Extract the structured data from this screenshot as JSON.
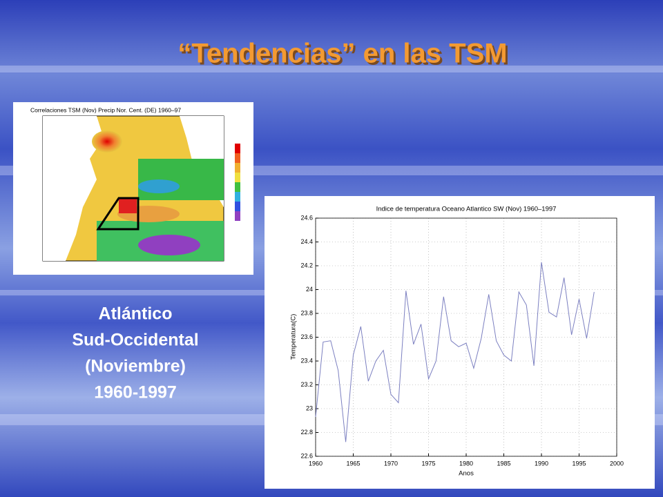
{
  "slide": {
    "title": "“Tendencias” en las TSM",
    "caption": [
      "Atlántico",
      "Sud-Occidental",
      "(Noviembre)",
      "1960-1997"
    ]
  },
  "map": {
    "title": "Correlaciones TSM (Nov) Precip Nor. Cent. (DE) 1960–97"
  },
  "chart_data": {
    "type": "line",
    "title": "Indice de temperatura Oceano Atlantico SW (Nov) 1960–1997",
    "xlabel": "Anos",
    "ylabel": "Temperatura(C)",
    "x": [
      1960,
      1961,
      1962,
      1963,
      1964,
      1965,
      1966,
      1967,
      1968,
      1969,
      1970,
      1971,
      1972,
      1973,
      1974,
      1975,
      1976,
      1977,
      1978,
      1979,
      1980,
      1981,
      1982,
      1983,
      1984,
      1985,
      1986,
      1987,
      1988,
      1989,
      1990,
      1991,
      1992,
      1993,
      1994,
      1995,
      1996,
      1997
    ],
    "series": [
      {
        "color": "#7b7fc0",
        "values": [
          22.93,
          23.56,
          23.57,
          23.32,
          22.72,
          23.45,
          23.69,
          23.23,
          23.4,
          23.49,
          23.12,
          23.05,
          23.99,
          23.54,
          23.71,
          23.25,
          23.4,
          23.94,
          23.57,
          23.52,
          23.55,
          23.34,
          23.59,
          23.96,
          23.57,
          23.45,
          23.4,
          23.98,
          23.87,
          23.36,
          24.23,
          23.81,
          23.77,
          24.1,
          23.62,
          23.92,
          23.59,
          23.98
        ]
      }
    ],
    "xlim": [
      1960,
      2000
    ],
    "xticks": [
      1960,
      1965,
      1970,
      1975,
      1980,
      1985,
      1990,
      1995,
      2000
    ],
    "ylim": [
      22.6,
      24.6
    ],
    "yticks": [
      22.6,
      22.8,
      23,
      23.2,
      23.4,
      23.6,
      23.8,
      24,
      24.2,
      24.4,
      24.6
    ],
    "grid": true
  }
}
